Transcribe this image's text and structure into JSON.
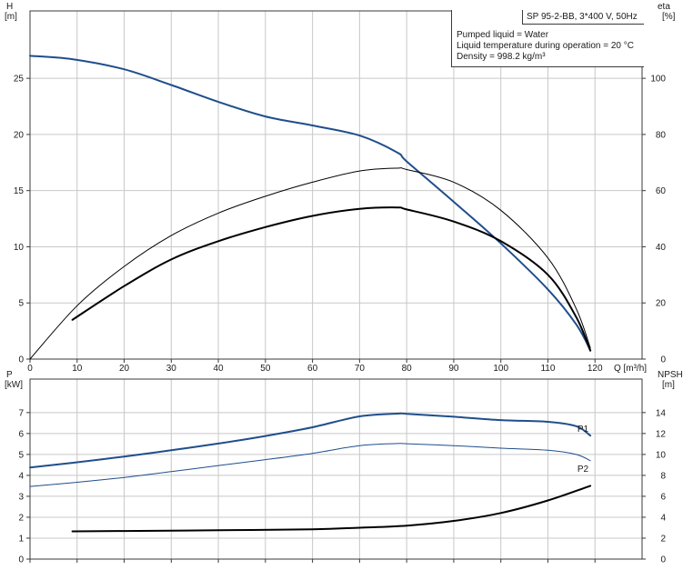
{
  "info": {
    "pump": "SP 95-2-BB, 3*400 V, 50Hz",
    "lines": [
      "Pumped liquid = Water",
      "Liquid temperature during operation = 20 °C",
      "Density = 998.2 kg/m³"
    ]
  },
  "colors": {
    "blue": "#1f4e8c",
    "black": "#000000",
    "grid": "#c8c8c8",
    "frame": "#3a3a3a"
  },
  "chart_data": [
    {
      "type": "line",
      "panel": "top",
      "x_axis": {
        "label": "Q [m³/h]",
        "range": [
          0,
          130
        ],
        "ticks": [
          0,
          10,
          20,
          30,
          40,
          50,
          60,
          70,
          80,
          90,
          100,
          110,
          120
        ]
      },
      "y_left": {
        "label_top": "H",
        "label_unit": "[m]",
        "range": [
          0,
          31
        ],
        "ticks": [
          0,
          5,
          10,
          15,
          20,
          25
        ]
      },
      "y_right": {
        "label_top": "eta",
        "label_unit": "[%]",
        "range": [
          0,
          124
        ],
        "ticks": [
          0,
          20,
          40,
          60,
          80,
          100
        ]
      },
      "grid": true,
      "series": [
        {
          "key": "head",
          "axis": "left",
          "color": "#1f4e8c",
          "width": 2,
          "points": [
            [
              0,
              27.0
            ],
            [
              9,
              26.7
            ],
            [
              20,
              25.8
            ],
            [
              30,
              24.4
            ],
            [
              40,
              22.9
            ],
            [
              50,
              21.6
            ],
            [
              60,
              20.8
            ],
            [
              70,
              19.9
            ],
            [
              78,
              18.4
            ],
            [
              80,
              17.6
            ],
            [
              90,
              14.0
            ],
            [
              100,
              10.3
            ],
            [
              110,
              6.2
            ],
            [
              116,
              3.1
            ],
            [
              119,
              0.8
            ]
          ]
        },
        {
          "key": "eta-thin",
          "axis": "right",
          "color": "#000000",
          "width": 1,
          "points": [
            [
              0,
              0
            ],
            [
              10,
              19
            ],
            [
              20,
              33
            ],
            [
              30,
              44
            ],
            [
              40,
              52
            ],
            [
              50,
              58
            ],
            [
              60,
              63
            ],
            [
              70,
              67
            ],
            [
              78,
              68
            ],
            [
              80,
              67.5
            ],
            [
              90,
              63
            ],
            [
              100,
              53
            ],
            [
              110,
              36
            ],
            [
              116,
              18
            ],
            [
              119,
              4
            ]
          ]
        },
        {
          "key": "eta-thick",
          "axis": "right",
          "color": "#000000",
          "width": 2,
          "points": [
            [
              9,
              14
            ],
            [
              20,
              26
            ],
            [
              30,
              35.5
            ],
            [
              40,
              42
            ],
            [
              50,
              47
            ],
            [
              60,
              51
            ],
            [
              70,
              53.5
            ],
            [
              78,
              54
            ],
            [
              80,
              53.3
            ],
            [
              90,
              49
            ],
            [
              100,
              42
            ],
            [
              110,
              30
            ],
            [
              116,
              15
            ],
            [
              119,
              3
            ]
          ]
        }
      ]
    },
    {
      "type": "line",
      "panel": "bottom",
      "x_axis": {
        "range": [
          0,
          130
        ],
        "ticks": [
          0,
          10,
          20,
          30,
          40,
          50,
          60,
          70,
          80,
          90,
          100,
          110,
          120
        ]
      },
      "y_left": {
        "label_top": "P",
        "label_unit": "[kW]",
        "range": [
          0,
          8.6
        ],
        "ticks": [
          0,
          1,
          2,
          3,
          4,
          5,
          6,
          7
        ]
      },
      "y_right": {
        "label_top": "NPSH",
        "label_unit": "[m]",
        "range": [
          0,
          17.2
        ],
        "ticks": [
          0,
          2,
          4,
          6,
          8,
          10,
          12,
          14
        ]
      },
      "grid": true,
      "series": [
        {
          "name": "P1",
          "axis": "left",
          "color": "#1f4e8c",
          "width": 2,
          "points": [
            [
              0,
              4.38
            ],
            [
              9,
              4.6
            ],
            [
              20,
              4.9
            ],
            [
              30,
              5.2
            ],
            [
              40,
              5.52
            ],
            [
              50,
              5.88
            ],
            [
              60,
              6.3
            ],
            [
              70,
              6.82
            ],
            [
              78,
              6.95
            ],
            [
              80,
              6.94
            ],
            [
              90,
              6.8
            ],
            [
              100,
              6.64
            ],
            [
              110,
              6.56
            ],
            [
              116,
              6.35
            ],
            [
              119,
              5.9
            ]
          ]
        },
        {
          "name": "P2",
          "axis": "left",
          "color": "#1f4e8c",
          "width": 1,
          "points": [
            [
              0,
              3.47
            ],
            [
              9,
              3.65
            ],
            [
              20,
              3.9
            ],
            [
              30,
              4.18
            ],
            [
              40,
              4.47
            ],
            [
              50,
              4.75
            ],
            [
              60,
              5.05
            ],
            [
              70,
              5.42
            ],
            [
              78,
              5.52
            ],
            [
              80,
              5.51
            ],
            [
              90,
              5.42
            ],
            [
              100,
              5.3
            ],
            [
              110,
              5.2
            ],
            [
              116,
              5.0
            ],
            [
              119,
              4.7
            ]
          ]
        },
        {
          "key": "npsh",
          "axis": "right",
          "color": "#000000",
          "width": 2,
          "points": [
            [
              9,
              2.65
            ],
            [
              20,
              2.68
            ],
            [
              40,
              2.75
            ],
            [
              60,
              2.85
            ],
            [
              70,
              3.0
            ],
            [
              80,
              3.2
            ],
            [
              90,
              3.65
            ],
            [
              100,
              4.4
            ],
            [
              110,
              5.6
            ],
            [
              119,
              7.0
            ]
          ]
        }
      ]
    }
  ]
}
